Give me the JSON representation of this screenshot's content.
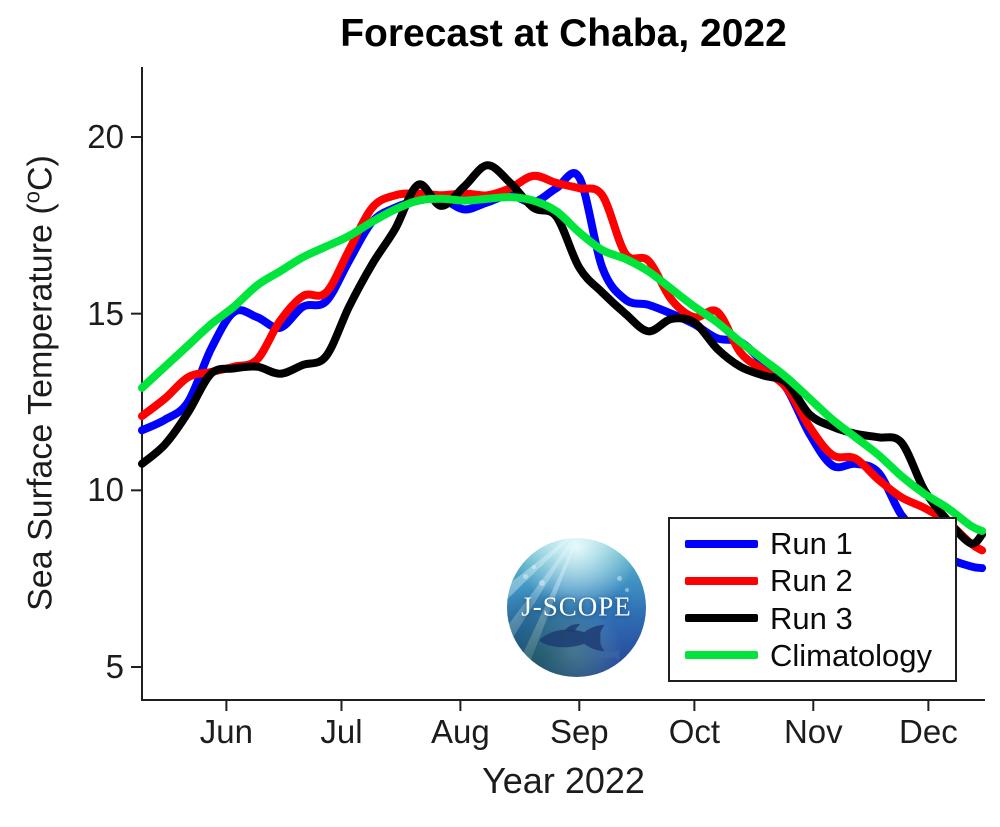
{
  "title": "Forecast at Chaba, 2022",
  "axes": {
    "ylabel": {
      "pre": "Sea Surface Temperature (",
      "sup": "o",
      "post": "C)"
    },
    "xlabel": "Year 2022"
  },
  "legend": {
    "entries": [
      {
        "label": "Run 1",
        "color": "#0000ff"
      },
      {
        "label": "Run 2",
        "color": "#ff0000"
      },
      {
        "label": "Run 3",
        "color": "#000000"
      },
      {
        "label": "Climatology",
        "color": "#00e53c"
      }
    ]
  },
  "logo": {
    "text": "J-SCOPE"
  },
  "chart_data": {
    "type": "line",
    "title": "Forecast at Chaba, 2022",
    "xlabel": "Year 2022",
    "ylabel": "Sea Surface Temperature (°C)",
    "ylim": [
      4,
      22
    ],
    "grid": false,
    "legend_position": "lower right",
    "yticks": [
      20,
      15,
      10,
      5
    ],
    "xticks": [
      {
        "label": "Jun",
        "day": 22
      },
      {
        "label": "Jul",
        "day": 52
      },
      {
        "label": "Aug",
        "day": 83
      },
      {
        "label": "Sep",
        "day": 114
      },
      {
        "label": "Oct",
        "day": 144
      },
      {
        "label": "Nov",
        "day": 175
      },
      {
        "label": "Dec",
        "day": 205
      }
    ],
    "x_dates": [
      "May 10",
      "May 16",
      "May 22",
      "May 28",
      "Jun 3",
      "Jun 9",
      "Jun 15",
      "Jun 21",
      "Jun 27",
      "Jul 3",
      "Jul 9",
      "Jul 15",
      "Jul 21",
      "Jul 27",
      "Aug 2",
      "Aug 8",
      "Aug 14",
      "Aug 20",
      "Aug 26",
      "Sep 1",
      "Sep 7",
      "Sep 13",
      "Sep 19",
      "Sep 25",
      "Oct 1",
      "Oct 7",
      "Oct 13",
      "Oct 19",
      "Oct 25",
      "Oct 31",
      "Nov 6",
      "Nov 12",
      "Nov 18",
      "Nov 24",
      "Nov 30",
      "Dec 6",
      "Dec 12",
      "Dec 15"
    ],
    "day_offsets": [
      0,
      6,
      12,
      18,
      24,
      30,
      36,
      42,
      48,
      54,
      60,
      66,
      72,
      78,
      84,
      90,
      96,
      102,
      108,
      114,
      120,
      126,
      132,
      138,
      144,
      150,
      156,
      162,
      168,
      174,
      180,
      186,
      192,
      198,
      204,
      210,
      216,
      219
    ],
    "series": [
      {
        "name": "Run 1",
        "color": "#0000ff",
        "values": [
          11.7,
          12.0,
          12.5,
          14.0,
          15.05,
          14.9,
          14.6,
          15.2,
          15.35,
          16.5,
          17.6,
          18.0,
          18.2,
          18.25,
          17.95,
          18.15,
          18.35,
          18.15,
          18.55,
          18.85,
          16.3,
          15.4,
          15.25,
          15.0,
          14.7,
          14.3,
          14.2,
          13.6,
          12.9,
          11.6,
          10.7,
          10.75,
          10.5,
          9.3,
          8.7,
          8.1,
          7.85,
          7.8
        ]
      },
      {
        "name": "Run 2",
        "color": "#ff0000",
        "values": [
          12.1,
          12.6,
          13.2,
          13.35,
          13.5,
          13.7,
          14.8,
          15.5,
          15.6,
          16.8,
          18.0,
          18.35,
          18.4,
          18.35,
          18.4,
          18.35,
          18.55,
          18.9,
          18.7,
          18.55,
          18.35,
          16.7,
          16.5,
          15.4,
          14.9,
          15.05,
          13.9,
          13.4,
          12.9,
          11.8,
          11.0,
          10.9,
          10.3,
          9.8,
          9.5,
          9.1,
          8.5,
          8.3
        ]
      },
      {
        "name": "Run 3",
        "color": "#000000",
        "values": [
          10.75,
          11.3,
          12.2,
          13.3,
          13.45,
          13.5,
          13.3,
          13.55,
          13.8,
          15.2,
          16.4,
          17.4,
          18.65,
          18.05,
          18.6,
          19.2,
          18.7,
          18.0,
          17.75,
          16.3,
          15.6,
          15.0,
          14.5,
          14.85,
          14.75,
          14.0,
          13.5,
          13.25,
          13.05,
          12.15,
          11.8,
          11.6,
          11.5,
          11.35,
          10.0,
          9.15,
          8.5,
          8.75
        ]
      },
      {
        "name": "Climatology",
        "color": "#00e53c",
        "values": [
          12.9,
          13.5,
          14.1,
          14.7,
          15.2,
          15.8,
          16.2,
          16.6,
          16.9,
          17.2,
          17.6,
          17.95,
          18.2,
          18.25,
          18.2,
          18.25,
          18.3,
          18.2,
          17.9,
          17.3,
          16.8,
          16.55,
          16.2,
          15.7,
          15.2,
          14.75,
          14.2,
          13.7,
          13.2,
          12.6,
          12.0,
          11.5,
          11.0,
          10.4,
          9.9,
          9.5,
          9.0,
          8.85
        ]
      }
    ]
  }
}
